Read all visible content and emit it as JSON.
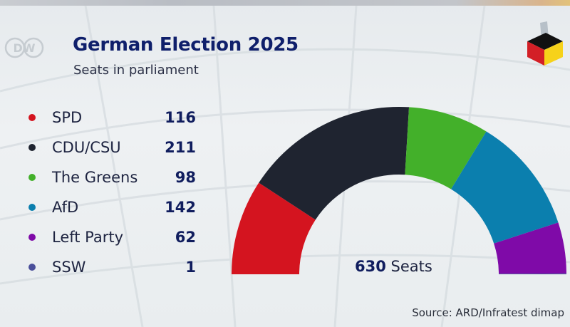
{
  "header": {
    "logo_text": "DW",
    "title": "German Election 2025",
    "subtitle": "Seats in parliament"
  },
  "icons": {
    "logo": "dw-logo-icon",
    "ballot": "ballot-box-icon"
  },
  "chart_data": {
    "type": "pie",
    "variant": "semicircle-parliament",
    "title": "German Election 2025",
    "subtitle": "Seats in parliament",
    "categories": [
      "SPD",
      "CDU/CSU",
      "The Greens",
      "AfD",
      "Left Party",
      "SSW"
    ],
    "values": [
      116,
      211,
      98,
      142,
      62,
      1
    ],
    "colors": [
      "#d4141f",
      "#1f2430",
      "#43b02a",
      "#0b7fae",
      "#7f0aa8",
      "#4a4f9a"
    ],
    "total": 630,
    "legend_position": "left",
    "source": "Source: ARD/Infratest dimap"
  },
  "total_label": {
    "number": "630",
    "unit": "Seats"
  },
  "footer": {
    "source": "Source: ARD/Infratest dimap"
  }
}
